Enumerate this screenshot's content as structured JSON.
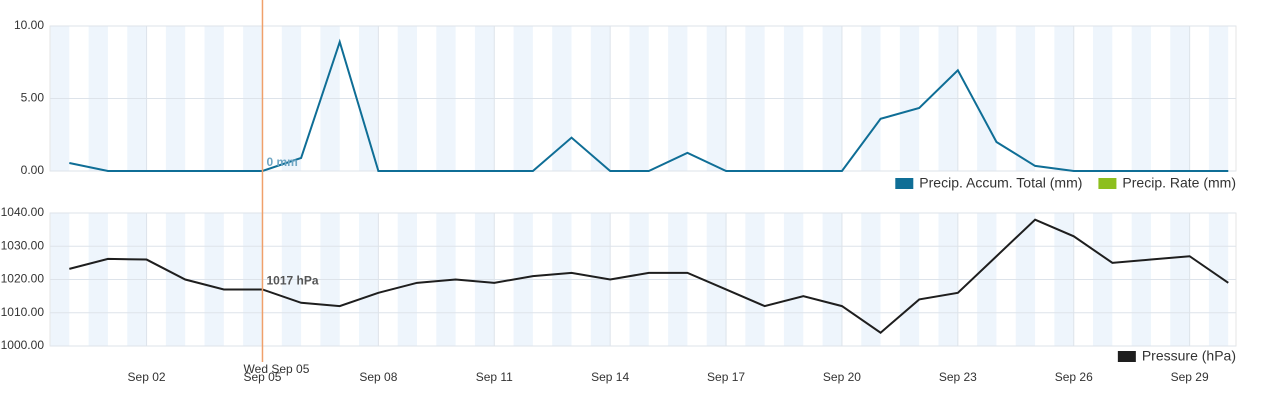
{
  "chart_data": [
    {
      "type": "line",
      "x": [
        0,
        1,
        2,
        3,
        4,
        5,
        6,
        7,
        8,
        9,
        10,
        11,
        12,
        13,
        14,
        15,
        16,
        17,
        18,
        19,
        20,
        21,
        22,
        23,
        24,
        25,
        26,
        27,
        28,
        29,
        30
      ],
      "series": [
        {
          "name": "Precip. Accum. Total (mm)",
          "color": "#0f6e96",
          "values": [
            0.55,
            0,
            0,
            0,
            0,
            0,
            0.9,
            8.9,
            0,
            0,
            0,
            0,
            0,
            2.3,
            0,
            0,
            1.25,
            0,
            0,
            0,
            0,
            3.6,
            4.35,
            6.95,
            2.0,
            0.35,
            0,
            0,
            0,
            0,
            0
          ]
        },
        {
          "name": "Precip. Rate (mm)",
          "color": "#8dbf1e",
          "values": [
            null,
            null,
            null,
            null,
            null,
            null,
            null,
            null,
            null,
            null,
            null,
            null,
            null,
            null,
            null,
            null,
            null,
            null,
            null,
            null,
            null,
            null,
            null,
            null,
            null,
            null,
            null,
            null,
            null,
            null,
            null
          ]
        }
      ],
      "xlim": [
        -0.5,
        30.2
      ],
      "ylim": [
        0,
        10
      ],
      "yticks": [
        {
          "value": 0,
          "label": "0.00"
        },
        {
          "value": 5,
          "label": "5.00"
        },
        {
          "value": 10,
          "label": "10.00"
        }
      ],
      "annotations": [
        {
          "x": 5,
          "text": "0 mm"
        }
      ],
      "grid": true,
      "legend": "bottom-right"
    },
    {
      "type": "line",
      "x": [
        0,
        1,
        2,
        3,
        4,
        5,
        6,
        7,
        8,
        9,
        10,
        11,
        12,
        13,
        14,
        15,
        16,
        17,
        18,
        19,
        20,
        21,
        22,
        23,
        24,
        25,
        26,
        27,
        28,
        29,
        30
      ],
      "series": [
        {
          "name": "Pressure (hPa)",
          "color": "#1e1e1e",
          "values": [
            1023.2,
            1026.2,
            1026,
            1020,
            1017,
            1017,
            1013,
            1012,
            1016,
            1019,
            1020,
            1019,
            1021,
            1022,
            1020,
            1022,
            1022,
            1017,
            1012,
            1015,
            1012,
            1004,
            1014,
            1016,
            1027,
            1038,
            1033,
            1025,
            1026,
            1027,
            1019
          ]
        }
      ],
      "xlim": [
        -0.5,
        30.2
      ],
      "xticks": [
        {
          "value": 2,
          "label": "Sep 02"
        },
        {
          "value": 5,
          "label": "Sep 05"
        },
        {
          "value": 8,
          "label": "Sep 08"
        },
        {
          "value": 11,
          "label": "Sep 11"
        },
        {
          "value": 14,
          "label": "Sep 14"
        },
        {
          "value": 17,
          "label": "Sep 17"
        },
        {
          "value": 20,
          "label": "Sep 20"
        },
        {
          "value": 23,
          "label": "Sep 23"
        },
        {
          "value": 26,
          "label": "Sep 26"
        },
        {
          "value": 29,
          "label": "Sep 29"
        }
      ],
      "ylim": [
        1000,
        1040
      ],
      "yticks": [
        {
          "value": 1000,
          "label": "1000.00"
        },
        {
          "value": 1010,
          "label": "1010.00"
        },
        {
          "value": 1020,
          "label": "1020.00"
        },
        {
          "value": 1030,
          "label": "1030.00"
        },
        {
          "value": 1040,
          "label": "1040.00"
        }
      ],
      "annotations": [
        {
          "x": 5,
          "text": "1017 hPa"
        }
      ],
      "crosshair": {
        "x": 5,
        "label": "Wed Sep 05"
      },
      "grid": true,
      "legend": "bottom-right"
    }
  ]
}
